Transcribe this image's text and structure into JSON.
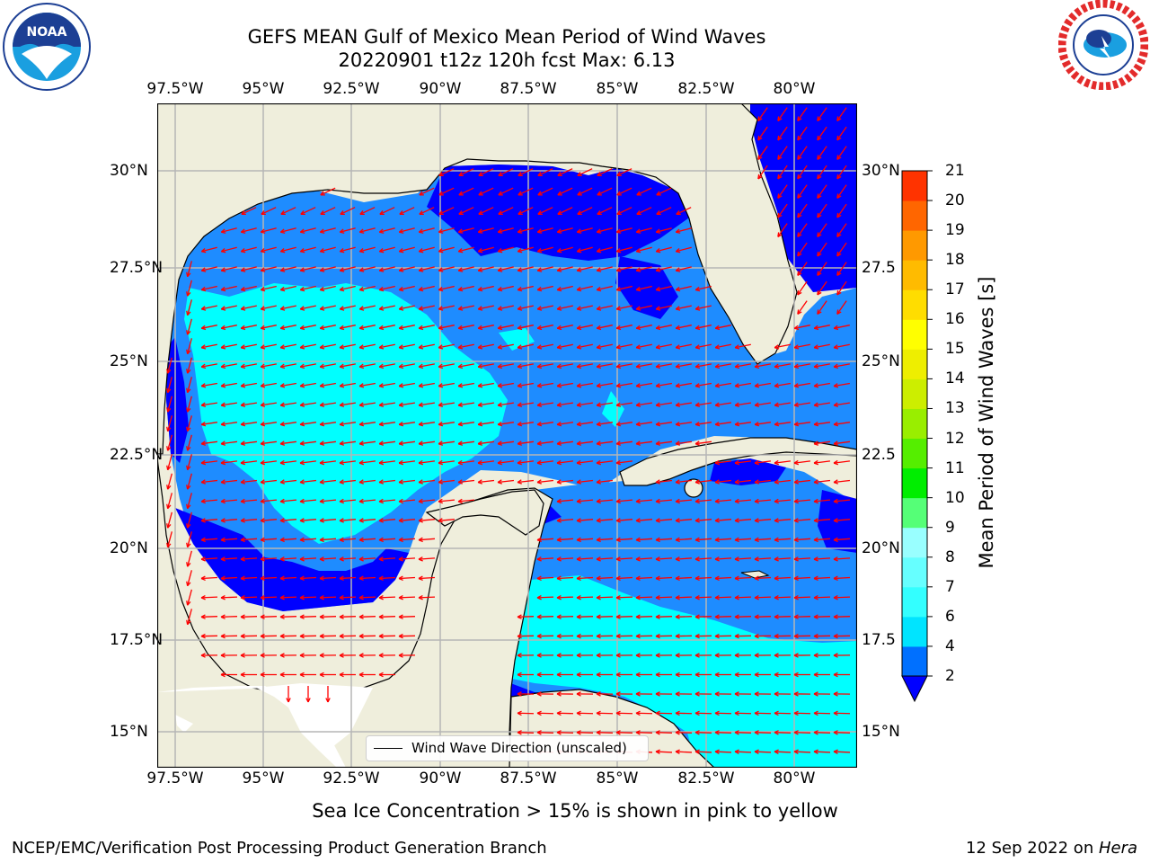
{
  "title_line1": "GEFS MEAN Gulf of Mexico Mean Period of Wind Waves",
  "title_line2": "20220901 t12z 120h fcst   Max: 6.13",
  "lon_ticks": [
    "97.5°W",
    "95°W",
    "92.5°W",
    "90°W",
    "87.5°W",
    "85°W",
    "82.5°W",
    "80°W"
  ],
  "lat_ticks": [
    "30°N",
    "27.5°N",
    "25°N",
    "22.5°N",
    "20°N",
    "17.5°N",
    "15°N"
  ],
  "lat_ticks_right": [
    "30°N",
    "27.5",
    "25°N",
    "22.5",
    "20°N",
    "17.5",
    "15°N"
  ],
  "colorbar": {
    "label": "Mean Period of Wind Waves [s]",
    "ticks": [
      "2",
      "4",
      "6",
      "7",
      "8",
      "9",
      "10",
      "11",
      "12",
      "13",
      "14",
      "15",
      "16",
      "17",
      "18",
      "19",
      "20",
      "21"
    ],
    "colors": [
      "#0070ff",
      "#00e4ff",
      "#33ffff",
      "#66ffff",
      "#99ffff",
      "#55ff77",
      "#00ee00",
      "#55ee00",
      "#99ee00",
      "#ccee00",
      "#eeee00",
      "#ffff00",
      "#ffdd00",
      "#ffbb00",
      "#ff9900",
      "#ff6600",
      "#ff3300",
      "#ff0000"
    ],
    "under_color": "#0000ff"
  },
  "legend_text": "Wind Wave Direction (unscaled)",
  "subtitle": "Sea Ice Concentration > 15% is shown in pink to yellow",
  "footer_left": "NCEP/EMC/Verification Post Processing Product Generation Branch",
  "footer_date": "12 Sep 2022 on ",
  "footer_machine": "Hera",
  "logos": {
    "left": "noaa-logo",
    "right": "nws-logo"
  },
  "colors": {
    "land": "#efeedc",
    "arrow": "#ff0000",
    "ocean_dark": "#0000ff",
    "ocean_mid": "#1e8cff",
    "ocean_light": "#00ffff"
  }
}
